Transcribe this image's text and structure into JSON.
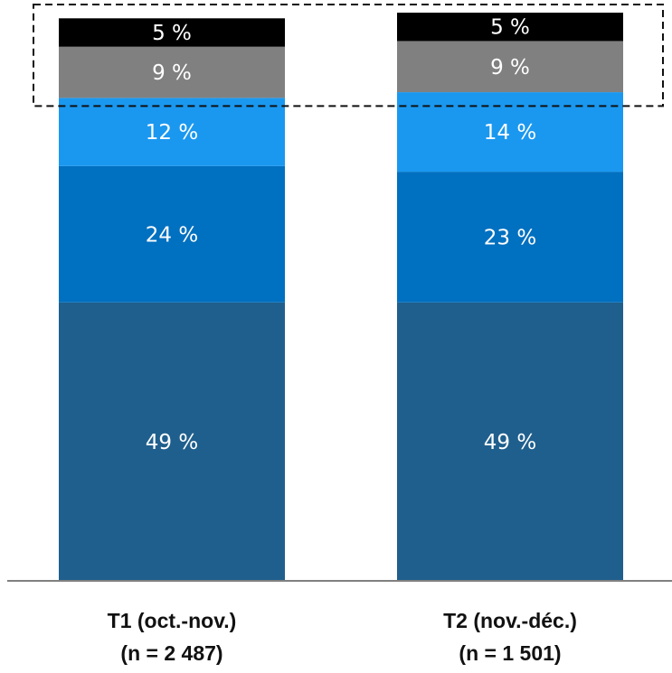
{
  "chart_data": {
    "type": "bar",
    "stacked": true,
    "categories": [
      {
        "line1": "T1 (oct.-nov.)",
        "line2": "(n = 2 487)"
      },
      {
        "line1": "T2 (nov.-déc.)",
        "line2": "(n = 1 501)"
      }
    ],
    "series": [
      {
        "values": [
          49,
          49
        ],
        "labels": [
          "49 %",
          "49 %"
        ],
        "color": "#1f5f8d"
      },
      {
        "values": [
          24,
          23
        ],
        "labels": [
          "24 %",
          "23 %"
        ],
        "color": "#0070c0"
      },
      {
        "values": [
          12,
          14
        ],
        "labels": [
          "12 %",
          "14 %"
        ],
        "color": "#1a98f0"
      },
      {
        "values": [
          9,
          9
        ],
        "labels": [
          "9 %",
          "9 %"
        ],
        "color": "#808080"
      },
      {
        "values": [
          5,
          5
        ],
        "labels": [
          "5 %",
          "5 %"
        ],
        "color": "#000000"
      }
    ],
    "highlight": {
      "series": [
        3,
        4
      ],
      "style": "dashed-box"
    },
    "ylim": [
      0,
      100
    ],
    "grid": false,
    "legend": "none",
    "axis_color": "#808080"
  }
}
